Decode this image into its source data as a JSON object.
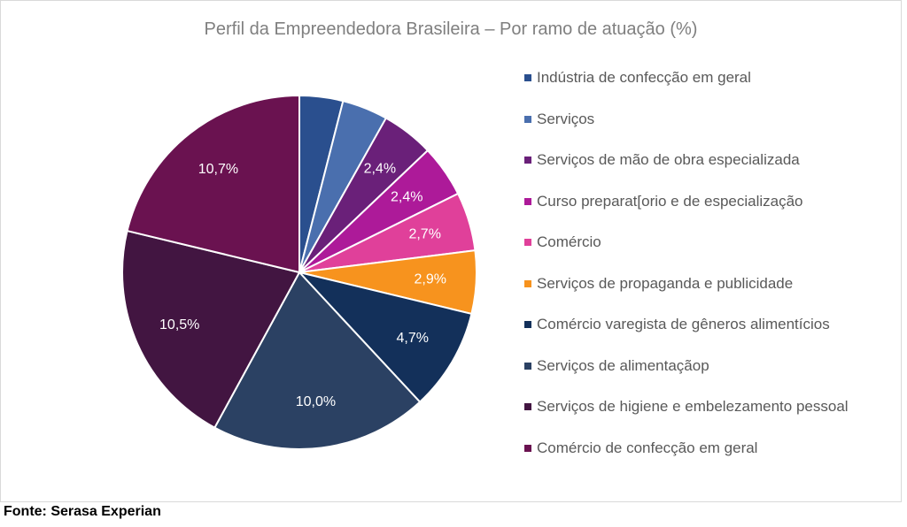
{
  "chart_data": {
    "type": "pie",
    "title": "Perfil da Empreendedora Brasileira – Por ramo de atuação (%)",
    "categories": [
      "Indústria de confecção em geral",
      "Serviços",
      "Serviços de mão de obra especializada",
      "Curso preparat[orio e de especialização",
      "Comércio",
      "Serviços de propaganda e publicidade",
      "Comércio varegista de gêneros alimentícios",
      "Serviços de alimentaçãop",
      "Serviços de higiene e embelezamento pessoal",
      "Comércio de confecção em geral"
    ],
    "values": [
      2.0,
      2.1,
      2.4,
      2.4,
      2.7,
      2.9,
      4.7,
      10.0,
      10.5,
      10.7
    ],
    "value_labels": [
      null,
      null,
      "2,4%",
      "2,4%",
      "2,7%",
      "2,9%",
      "4,7%",
      "10,0%",
      "10,5%",
      "10,7%"
    ],
    "colors": [
      "#2a4f8e",
      "#4a6fae",
      "#6a2079",
      "#ad1a99",
      "#e0409a",
      "#f7931e",
      "#13305a",
      "#2b4163",
      "#421541",
      "#6a1250"
    ],
    "legend": "right"
  },
  "source": "Fonte: Serasa Experian"
}
